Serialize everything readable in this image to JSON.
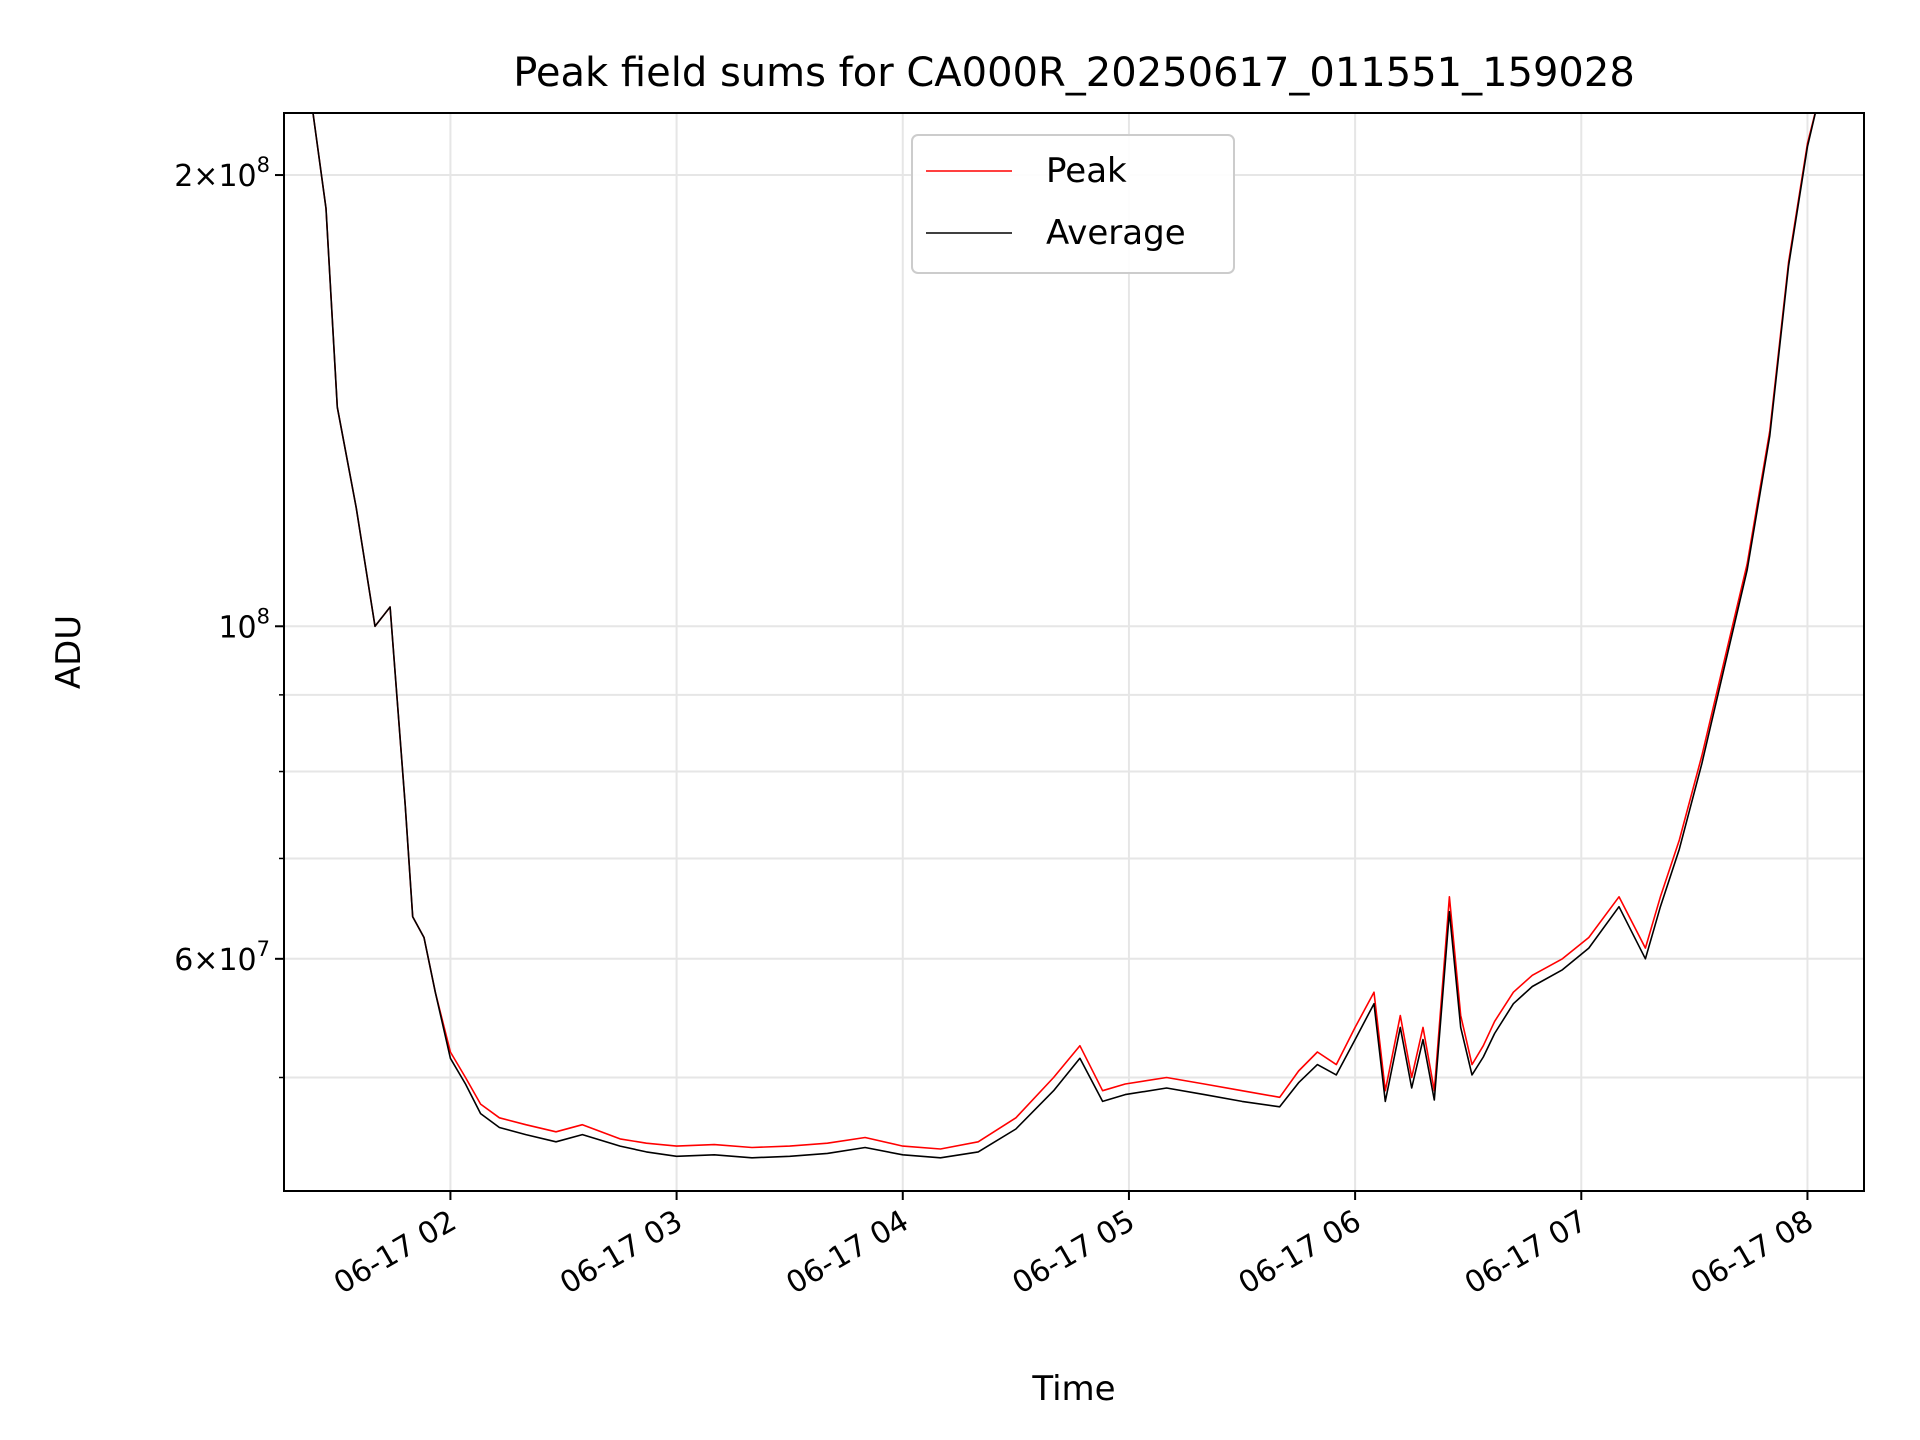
{
  "chart_data": {
    "type": "line",
    "title": "Peak field sums for CA000R_20250617_011551_159028",
    "xlabel": "Time",
    "ylabel": "ADU",
    "y_scale": "log",
    "x_range": [
      "2025-06-17 01:15:51",
      "2025-06-17 08:15:00"
    ],
    "ylim": [
      42000000,
      220000000
    ],
    "x_tick_labels": [
      "06-17 02",
      "06-17 03",
      "06-17 04",
      "06-17 05",
      "06-17 06",
      "06-17 07",
      "06-17 08"
    ],
    "x_tick_times": [
      "2025-06-17 02:00",
      "2025-06-17 03:00",
      "2025-06-17 04:00",
      "2025-06-17 05:00",
      "2025-06-17 06:00",
      "2025-06-17 07:00",
      "2025-06-17 08:00"
    ],
    "y_tick_labels": [
      {
        "value": 200000000,
        "mant": "2×10",
        "exp": "8"
      },
      {
        "value": 100000000,
        "mant": "10",
        "exp": "8"
      },
      {
        "value": 60000000,
        "mant": "6×10",
        "exp": "7"
      }
    ],
    "y_minor_ticks": [
      50000000,
      70000000,
      80000000,
      90000000
    ],
    "grid": true,
    "legend_position": "top-center",
    "series": [
      {
        "name": "Peak",
        "color": "#ff0000",
        "x": [
          "2025-06-17 01:15",
          "2025-06-17 01:23",
          "2025-06-17 01:27",
          "2025-06-17 01:30",
          "2025-06-17 01:35",
          "2025-06-17 01:40",
          "2025-06-17 01:44",
          "2025-06-17 01:48",
          "2025-06-17 01:50",
          "2025-06-17 01:53",
          "2025-06-17 01:56",
          "2025-06-17 02:00",
          "2025-06-17 02:04",
          "2025-06-17 02:08",
          "2025-06-17 02:13",
          "2025-06-17 02:20",
          "2025-06-17 02:28",
          "2025-06-17 02:35",
          "2025-06-17 02:45",
          "2025-06-17 02:52",
          "2025-06-17 03:00",
          "2025-06-17 03:10",
          "2025-06-17 03:20",
          "2025-06-17 03:30",
          "2025-06-17 03:40",
          "2025-06-17 03:50",
          "2025-06-17 04:00",
          "2025-06-17 04:10",
          "2025-06-17 04:20",
          "2025-06-17 04:30",
          "2025-06-17 04:40",
          "2025-06-17 04:47",
          "2025-06-17 04:53",
          "2025-06-17 04:59",
          "2025-06-17 05:10",
          "2025-06-17 05:20",
          "2025-06-17 05:30",
          "2025-06-17 05:40",
          "2025-06-17 05:45",
          "2025-06-17 05:50",
          "2025-06-17 05:55",
          "2025-06-17 06:00",
          "2025-06-17 06:05",
          "2025-06-17 06:08",
          "2025-06-17 06:12",
          "2025-06-17 06:15",
          "2025-06-17 06:18",
          "2025-06-17 06:21",
          "2025-06-17 06:25",
          "2025-06-17 06:28",
          "2025-06-17 06:31",
          "2025-06-17 06:34",
          "2025-06-17 06:37",
          "2025-06-17 06:42",
          "2025-06-17 06:47",
          "2025-06-17 06:55",
          "2025-06-17 07:02",
          "2025-06-17 07:10",
          "2025-06-17 07:17",
          "2025-06-17 07:21",
          "2025-06-17 07:26",
          "2025-06-17 07:32",
          "2025-06-17 07:38",
          "2025-06-17 07:44",
          "2025-06-17 07:50",
          "2025-06-17 07:55",
          "2025-06-17 08:00",
          "2025-06-17 08:03",
          "2025-06-17 08:15"
        ],
        "y": [
          225000000,
          225000000,
          190000000,
          140000000,
          120000000,
          100000000,
          103000000,
          76000000,
          64000000,
          62000000,
          57000000,
          52000000,
          50000000,
          48000000,
          47000000,
          46500000,
          46000000,
          46500000,
          45500000,
          45200000,
          45000000,
          45100000,
          44900000,
          45000000,
          45200000,
          45600000,
          45000000,
          44800000,
          45300000,
          47000000,
          50000000,
          52500000,
          49000000,
          49500000,
          50000000,
          49500000,
          49000000,
          48500000,
          50500000,
          52000000,
          51000000,
          54000000,
          57000000,
          49000000,
          55000000,
          50000000,
          54000000,
          49000000,
          66000000,
          55000000,
          51000000,
          52500000,
          54500000,
          57000000,
          58500000,
          60000000,
          62000000,
          66000000,
          61000000,
          66000000,
          72000000,
          82000000,
          95000000,
          110000000,
          135000000,
          175000000,
          210000000,
          225000000,
          225000000
        ]
      },
      {
        "name": "Average",
        "color": "#000000",
        "x": [
          "2025-06-17 01:15",
          "2025-06-17 01:23",
          "2025-06-17 01:27",
          "2025-06-17 01:30",
          "2025-06-17 01:35",
          "2025-06-17 01:40",
          "2025-06-17 01:44",
          "2025-06-17 01:48",
          "2025-06-17 01:50",
          "2025-06-17 01:53",
          "2025-06-17 01:56",
          "2025-06-17 02:00",
          "2025-06-17 02:04",
          "2025-06-17 02:08",
          "2025-06-17 02:13",
          "2025-06-17 02:20",
          "2025-06-17 02:28",
          "2025-06-17 02:35",
          "2025-06-17 02:45",
          "2025-06-17 02:52",
          "2025-06-17 03:00",
          "2025-06-17 03:10",
          "2025-06-17 03:20",
          "2025-06-17 03:30",
          "2025-06-17 03:40",
          "2025-06-17 03:50",
          "2025-06-17 04:00",
          "2025-06-17 04:10",
          "2025-06-17 04:20",
          "2025-06-17 04:30",
          "2025-06-17 04:40",
          "2025-06-17 04:47",
          "2025-06-17 04:53",
          "2025-06-17 04:59",
          "2025-06-17 05:10",
          "2025-06-17 05:20",
          "2025-06-17 05:30",
          "2025-06-17 05:40",
          "2025-06-17 05:45",
          "2025-06-17 05:50",
          "2025-06-17 05:55",
          "2025-06-17 06:00",
          "2025-06-17 06:05",
          "2025-06-17 06:08",
          "2025-06-17 06:12",
          "2025-06-17 06:15",
          "2025-06-17 06:18",
          "2025-06-17 06:21",
          "2025-06-17 06:25",
          "2025-06-17 06:28",
          "2025-06-17 06:31",
          "2025-06-17 06:34",
          "2025-06-17 06:37",
          "2025-06-17 06:42",
          "2025-06-17 06:47",
          "2025-06-17 06:55",
          "2025-06-17 07:02",
          "2025-06-17 07:10",
          "2025-06-17 07:17",
          "2025-06-17 07:21",
          "2025-06-17 07:26",
          "2025-06-17 07:32",
          "2025-06-17 07:38",
          "2025-06-17 07:44",
          "2025-06-17 07:50",
          "2025-06-17 07:55",
          "2025-06-17 08:00",
          "2025-06-17 08:03",
          "2025-06-17 08:15"
        ],
        "y": [
          225000000,
          225000000,
          190000000,
          140000000,
          120000000,
          100000000,
          103000000,
          76000000,
          64000000,
          62000000,
          57000000,
          51500000,
          49500000,
          47300000,
          46300000,
          45800000,
          45300000,
          45800000,
          45000000,
          44600000,
          44300000,
          44400000,
          44200000,
          44300000,
          44500000,
          44900000,
          44400000,
          44200000,
          44600000,
          46200000,
          49000000,
          51500000,
          48200000,
          48700000,
          49200000,
          48700000,
          48200000,
          47800000,
          49600000,
          51000000,
          50200000,
          53000000,
          56000000,
          48200000,
          54000000,
          49200000,
          53000000,
          48300000,
          64500000,
          54000000,
          50200000,
          51600000,
          53500000,
          56000000,
          57500000,
          59000000,
          61000000,
          65000000,
          60000000,
          65000000,
          71000000,
          81000000,
          94000000,
          109000000,
          134000000,
          174000000,
          209000000,
          225000000,
          225000000
        ]
      }
    ]
  }
}
